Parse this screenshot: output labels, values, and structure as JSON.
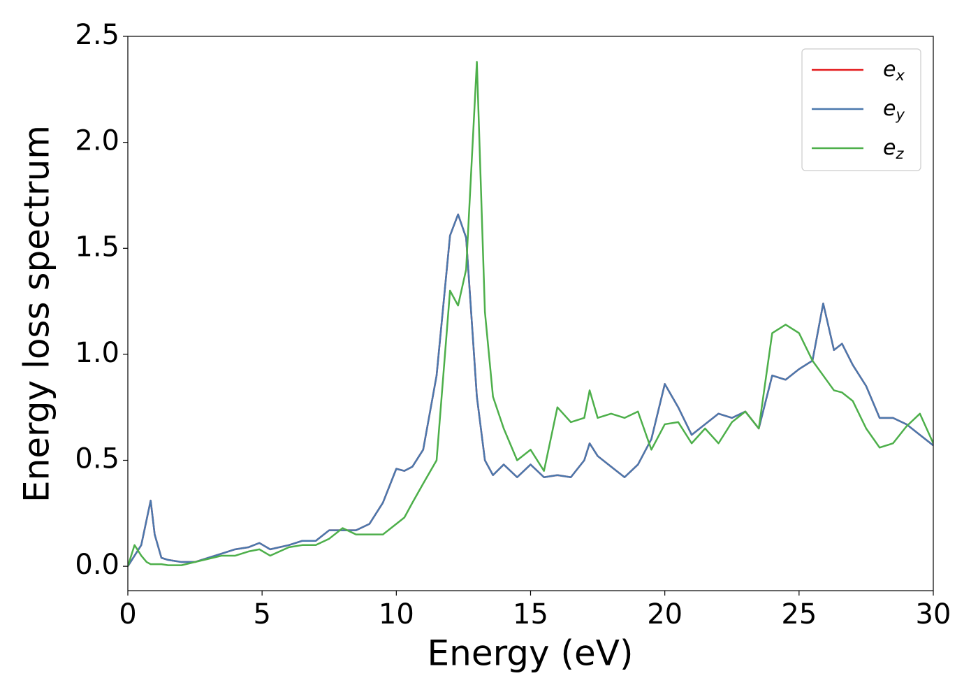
{
  "chart_data": {
    "type": "line",
    "xlabel": "Energy (eV)",
    "ylabel": "Energy loss spectrum",
    "x": [
      0,
      0.25,
      0.5,
      0.7,
      0.85,
      1.0,
      1.25,
      1.5,
      2,
      2.5,
      3,
      3.5,
      4,
      4.5,
      4.9,
      5.3,
      6,
      6.5,
      7,
      7.5,
      8,
      8.5,
      9,
      9.5,
      10,
      10.3,
      10.6,
      11,
      11.5,
      12,
      12.3,
      12.6,
      13,
      13.3,
      13.6,
      14,
      14.5,
      15,
      15.5,
      16,
      16.5,
      17,
      17.2,
      17.5,
      18,
      18.5,
      19,
      19.5,
      20,
      20.5,
      21,
      21.5,
      22,
      22.5,
      23,
      23.5,
      24,
      24.5,
      25,
      25.5,
      25.9,
      26.3,
      26.6,
      27,
      27.5,
      28,
      28.5,
      29,
      29.5,
      30
    ],
    "series": [
      {
        "name": "e_x",
        "color": "#e41a1c",
        "values": [
          0.0,
          0.05,
          0.1,
          0.22,
          0.31,
          0.15,
          0.04,
          0.03,
          0.02,
          0.02,
          0.04,
          0.06,
          0.08,
          0.09,
          0.11,
          0.08,
          0.1,
          0.12,
          0.12,
          0.17,
          0.17,
          0.17,
          0.2,
          0.3,
          0.46,
          0.45,
          0.47,
          0.55,
          0.9,
          1.56,
          1.66,
          1.55,
          0.8,
          0.5,
          0.43,
          0.48,
          0.42,
          0.48,
          0.42,
          0.43,
          0.42,
          0.5,
          0.58,
          0.52,
          0.47,
          0.42,
          0.48,
          0.6,
          0.86,
          0.75,
          0.62,
          0.67,
          0.72,
          0.7,
          0.73,
          0.65,
          0.9,
          0.88,
          0.93,
          0.97,
          1.24,
          1.02,
          1.05,
          0.95,
          0.85,
          0.7,
          0.7,
          0.67,
          0.62,
          0.57
        ]
      },
      {
        "name": "e_y",
        "color": "#4a78ad",
        "values": [
          0.0,
          0.05,
          0.1,
          0.22,
          0.31,
          0.15,
          0.04,
          0.03,
          0.02,
          0.02,
          0.04,
          0.06,
          0.08,
          0.09,
          0.11,
          0.08,
          0.1,
          0.12,
          0.12,
          0.17,
          0.17,
          0.17,
          0.2,
          0.3,
          0.46,
          0.45,
          0.47,
          0.55,
          0.9,
          1.56,
          1.66,
          1.55,
          0.8,
          0.5,
          0.43,
          0.48,
          0.42,
          0.48,
          0.42,
          0.43,
          0.42,
          0.5,
          0.58,
          0.52,
          0.47,
          0.42,
          0.48,
          0.6,
          0.86,
          0.75,
          0.62,
          0.67,
          0.72,
          0.7,
          0.73,
          0.65,
          0.9,
          0.88,
          0.93,
          0.97,
          1.24,
          1.02,
          1.05,
          0.95,
          0.85,
          0.7,
          0.7,
          0.67,
          0.62,
          0.57
        ]
      },
      {
        "name": "e_z",
        "color": "#4daf4a",
        "values": [
          0.0,
          0.1,
          0.05,
          0.02,
          0.01,
          0.01,
          0.01,
          0.005,
          0.005,
          0.02,
          0.035,
          0.05,
          0.05,
          0.07,
          0.08,
          0.05,
          0.09,
          0.1,
          0.1,
          0.13,
          0.18,
          0.15,
          0.15,
          0.15,
          0.2,
          0.23,
          0.3,
          0.39,
          0.5,
          1.3,
          1.23,
          1.4,
          2.38,
          1.2,
          0.8,
          0.65,
          0.5,
          0.55,
          0.45,
          0.75,
          0.68,
          0.7,
          0.83,
          0.7,
          0.72,
          0.7,
          0.73,
          0.55,
          0.67,
          0.68,
          0.58,
          0.65,
          0.58,
          0.68,
          0.73,
          0.65,
          1.1,
          1.14,
          1.1,
          0.97,
          0.9,
          0.83,
          0.82,
          0.78,
          0.65,
          0.56,
          0.58,
          0.66,
          0.72,
          0.58
        ]
      }
    ],
    "xlim": [
      0,
      30
    ],
    "xticks": [
      0,
      5,
      10,
      15,
      20,
      25,
      30
    ],
    "ylim": [
      -0.115,
      2.5
    ],
    "yticks": [
      {
        "value": 0,
        "label": "0.0"
      },
      {
        "value": 0.5,
        "label": "0.5"
      },
      {
        "value": 1,
        "label": "1.0"
      },
      {
        "value": 1.5,
        "label": "1.5"
      },
      {
        "value": 2,
        "label": "2.0"
      },
      {
        "value": 2.5,
        "label": "2.5"
      }
    ],
    "grid": false,
    "legend": "upper right"
  }
}
